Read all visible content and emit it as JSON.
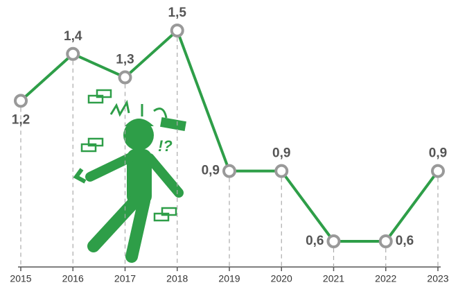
{
  "chart_data": {
    "type": "line",
    "categories": [
      "2015",
      "2016",
      "2017",
      "2018",
      "2019",
      "2020",
      "2021",
      "2022",
      "2023"
    ],
    "series": [
      {
        "color": "#2e9e48",
        "values": [
          1.2,
          1.4,
          1.3,
          1.5,
          0.9,
          0.9,
          0.6,
          0.6,
          0.9
        ],
        "value_labels": [
          "1,2",
          "1,4",
          "1,3",
          "1,5",
          "0,9",
          "0,9",
          "0,6",
          "0,6",
          "0,9"
        ]
      }
    ]
  }
}
